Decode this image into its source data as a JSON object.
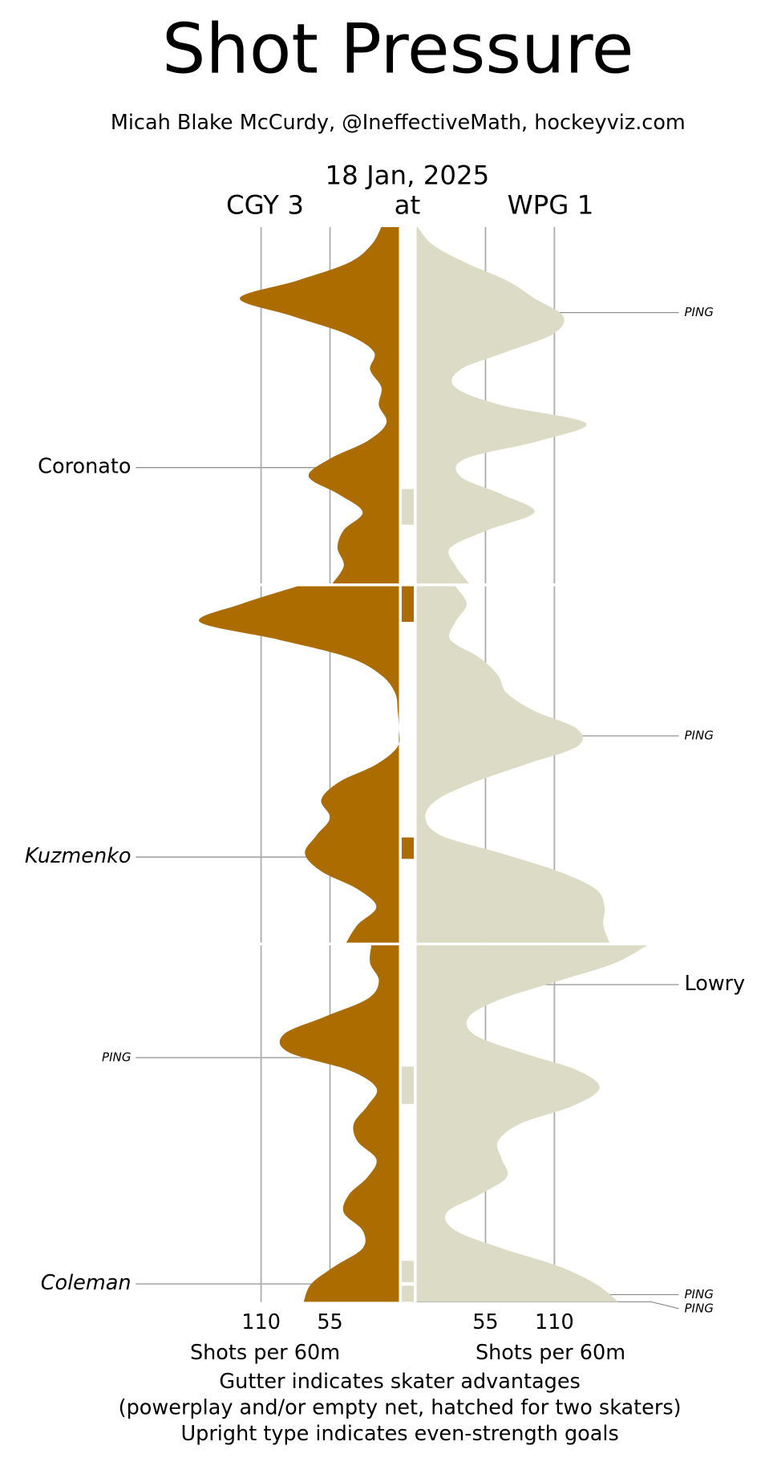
{
  "chart_data": {
    "type": "shot-pressure",
    "title": "Shot Pressure",
    "subtitle": "Micah Blake McCurdy, @IneffectiveMath, hockeyviz.com",
    "date": "18 Jan, 2025",
    "away_label": "CGY 3",
    "at_label": "at",
    "home_label": "WPG 1",
    "xlabel": "Shots per 60m",
    "xlim": [
      0,
      190
    ],
    "xticks": [
      55,
      110
    ],
    "grid": true,
    "away_color": "#ad6c00",
    "home_color": "#dcdcc6",
    "periods": [
      {
        "x": [
          0,
          1,
          2,
          3,
          4,
          5,
          6,
          7,
          8,
          9,
          10,
          11,
          12,
          13,
          14,
          15,
          16,
          17,
          18,
          19,
          20
        ],
        "series": [
          {
            "side": "away",
            "values": [
              14,
              22,
              40,
              81,
              127,
              85,
              42,
              20,
              23,
              14,
              16,
              10,
              25,
              55,
              72,
              48,
              29,
              44,
              49,
              44,
              53
            ]
          },
          {
            "side": "home",
            "values": [
              1,
              13,
              39,
              72,
              94,
              117,
              109,
              72,
              35,
              31,
              68,
              135,
              98,
              39,
              35,
              68,
              94,
              57,
              27,
              31,
              42
            ]
          }
        ]
      },
      {
        "x": [
          20,
          21,
          22,
          23,
          24,
          25,
          26,
          27,
          28,
          29,
          30,
          31,
          32,
          33,
          34,
          35,
          36,
          37,
          38,
          39,
          40
        ],
        "series": [
          {
            "side": "away",
            "values": [
              81,
              126,
              159,
              96,
              40,
              14,
              3,
              1,
              0,
              1,
              18,
              48,
              62,
              55,
              66,
              75,
              62,
              33,
              18,
              33,
              42
            ]
          },
          {
            "side": "home",
            "values": [
              31,
              40,
              31,
              27,
              50,
              65,
              72,
              94,
              128,
              128,
              87,
              46,
              16,
              7,
              20,
              68,
              113,
              143,
              150,
              149,
              154
            ]
          }
        ]
      },
      {
        "x": [
          40,
          41,
          42,
          43,
          44,
          45,
          46,
          47,
          48,
          49,
          50,
          51,
          52,
          53,
          54,
          55,
          56,
          57,
          58,
          59,
          60
        ],
        "series": [
          {
            "side": "away",
            "values": [
              22,
              23,
              16,
              25,
              59,
              92,
              88,
              40,
              18,
              25,
              36,
              33,
              18,
              25,
              40,
              44,
              29,
              29,
              51,
              70,
              76
            ]
          },
          {
            "side": "home",
            "values": [
              184,
              158,
              113,
              68,
              42,
              46,
              83,
              128,
              146,
              125,
              83,
              65,
              68,
              72,
              50,
              24,
              31,
              68,
              113,
              143,
              161
            ]
          }
        ]
      }
    ],
    "gutter": [
      {
        "side": "home",
        "start": 14.7,
        "end": 16.7
      },
      {
        "side": "away",
        "start": 20,
        "end": 22
      },
      {
        "side": "away",
        "start": 34.1,
        "end": 35.3
      },
      {
        "side": "home",
        "start": 46.8,
        "end": 48.9
      },
      {
        "side": "home",
        "start": 57.7,
        "end": 58.9
      },
      {
        "side": "home",
        "start": 59.1,
        "end": 60
      }
    ],
    "goals": [
      {
        "label": "PING",
        "time": 4.8,
        "side": "home",
        "italic": true,
        "small": true
      },
      {
        "label": "Coronato",
        "time": 13.5,
        "side": "away"
      },
      {
        "label": "PING",
        "time": 28.4,
        "side": "home",
        "italic": true,
        "small": true
      },
      {
        "label": "Kuzmenko",
        "time": 35.2,
        "side": "away",
        "italic": true
      },
      {
        "label": "Lowry",
        "time": 42.2,
        "side": "home"
      },
      {
        "label": "PING",
        "time": 46.3,
        "side": "away",
        "italic": true,
        "small": true
      },
      {
        "label": "Coleman",
        "time": 59.0,
        "side": "away",
        "italic": true
      },
      {
        "label": "PING",
        "time": 59.6,
        "side": "home",
        "italic": true,
        "small": true
      },
      {
        "label": "PING",
        "time": 60,
        "side": "home",
        "italic": true,
        "small": true
      }
    ],
    "notes": [
      "Gutter indicates skater advantages",
      "(powerplay and/or empty net, hatched for two skaters)",
      "Upright type indicates even-strength goals"
    ]
  }
}
